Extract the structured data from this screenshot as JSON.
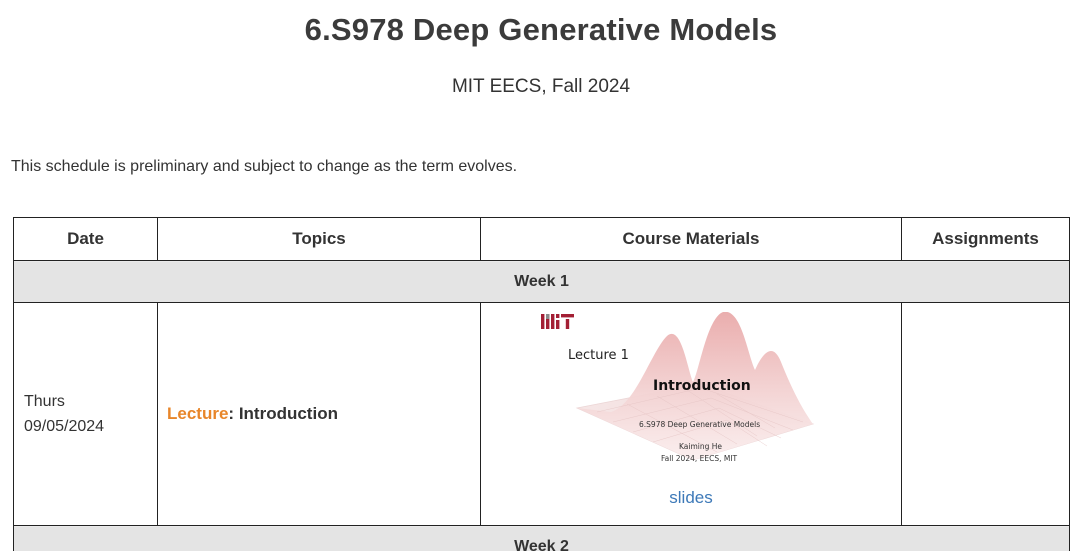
{
  "header": {
    "title": "6.S978 Deep Generative Models",
    "subtitle": "MIT EECS, Fall 2024"
  },
  "note": "This schedule is preliminary and subject to change as the term evolves.",
  "table": {
    "columns": [
      "Date",
      "Topics",
      "Course Materials",
      "Assignments"
    ],
    "weeks": [
      {
        "label": "Week 1",
        "lecture": {
          "day": "Thurs",
          "date": "09/05/2024",
          "tag": "Lecture",
          "separator": ": ",
          "topic": "Introduction",
          "thumbnail": {
            "lecture_label": "Lecture 1",
            "title": "Introduction",
            "course": "6.S978 Deep Generative Models",
            "author": "Kaiming He",
            "term": "Fall 2024, EECS, MIT"
          },
          "materials_link": "slides",
          "assignment": ""
        }
      },
      {
        "label": "Week 2"
      }
    ]
  },
  "colors": {
    "lecture_tag": "#e8862a",
    "link": "#3d79b8",
    "week_bg": "#dedede",
    "mit_logo": "#a31f34"
  },
  "icons": {
    "mit": "mit-logo-icon",
    "surface": "gaussian-surface-graphic"
  }
}
